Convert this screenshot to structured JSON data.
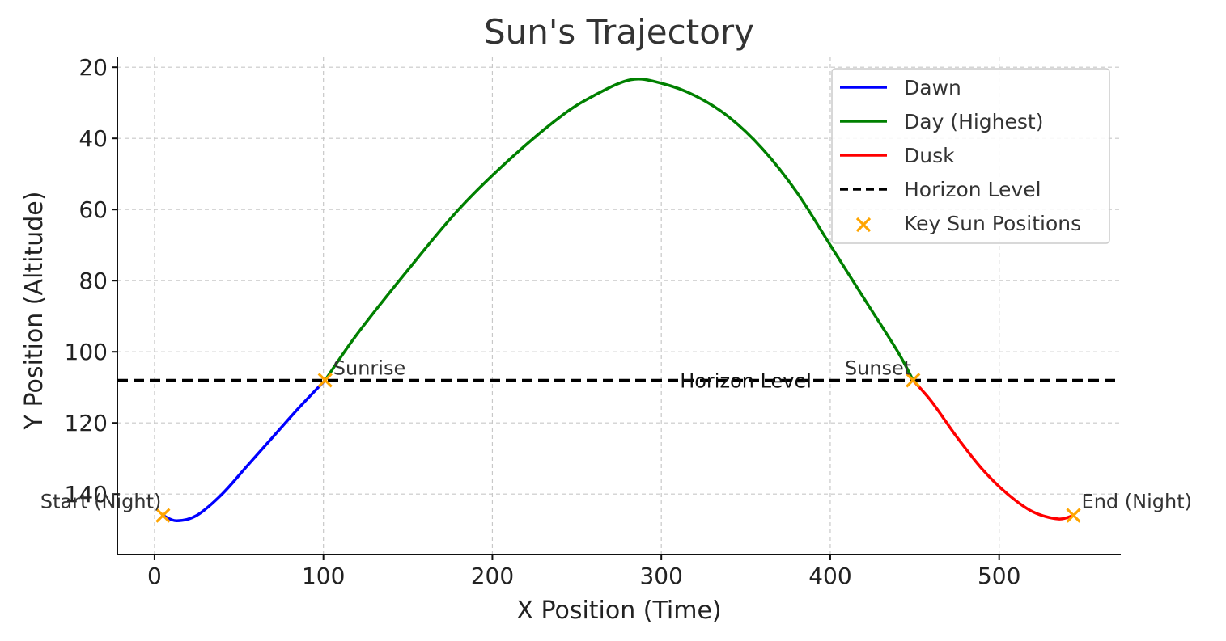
{
  "chart_data": {
    "type": "line",
    "title": "Sun's Trajectory",
    "xlabel": "X Position (Time)",
    "ylabel": "Y Position (Altitude)",
    "xlim": [
      -22,
      572
    ],
    "ylim": [
      17,
      157
    ],
    "y_inverted": true,
    "grid": true,
    "legend_position": "top-right",
    "xticks": [
      0,
      100,
      200,
      300,
      400,
      500
    ],
    "yticks": [
      20,
      40,
      60,
      80,
      100,
      120,
      140
    ],
    "colors": {
      "dawn": "#0000ff",
      "day": "#008000",
      "dusk": "#ff0000",
      "horizon": "#000000",
      "marker": "#ffa500"
    },
    "series": [
      {
        "name": "Dawn",
        "color": "#0000ff",
        "x": [
          5,
          13,
          25,
          40,
          55,
          70,
          85,
          101
        ],
        "y": [
          146,
          147.5,
          146,
          140,
          132,
          124,
          116,
          108
        ]
      },
      {
        "name": "Day (Highest)",
        "color": "#008000",
        "x": [
          101,
          120,
          150,
          180,
          210,
          240,
          260,
          282,
          300,
          320,
          340,
          360,
          380,
          400,
          420,
          440,
          449
        ],
        "y": [
          108,
          95,
          77,
          60,
          46,
          34,
          28,
          23.5,
          24.5,
          28,
          34,
          43,
          55,
          70,
          85,
          100,
          108
        ]
      },
      {
        "name": "Dusk",
        "color": "#ff0000",
        "x": [
          449,
          460,
          475,
          490,
          505,
          520,
          535,
          544
        ],
        "y": [
          108,
          114,
          124,
          133,
          140,
          145,
          147,
          146
        ]
      },
      {
        "name": "Horizon Level",
        "color": "#000000",
        "dashed": true,
        "x": [
          -22,
          572
        ],
        "y": [
          108,
          108
        ]
      },
      {
        "name": "Key Sun Positions",
        "color": "#ffa500",
        "marker": "x",
        "x": [
          5,
          101,
          449,
          544
        ],
        "y": [
          146,
          108,
          108,
          146
        ]
      }
    ],
    "annotations": [
      {
        "text": "Start (Night)",
        "x": 5,
        "y": 146
      },
      {
        "text": "Sunrise",
        "x": 101,
        "y": 108
      },
      {
        "text": "Sunset",
        "x": 449,
        "y": 108
      },
      {
        "text": "End (Night)",
        "x": 544,
        "y": 146
      },
      {
        "text": "Horizon Level",
        "x": 350,
        "y": 108
      }
    ]
  }
}
